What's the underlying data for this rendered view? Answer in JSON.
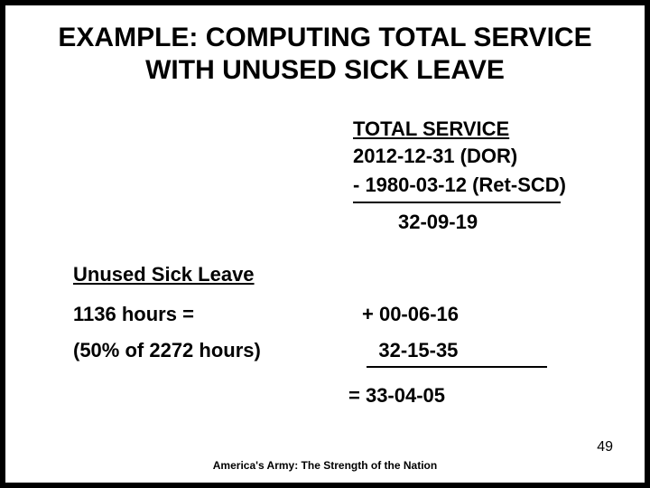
{
  "title": "EXAMPLE: COMPUTING TOTAL SERVICE WITH UNUSED SICK LEAVE",
  "total_service": {
    "label": "TOTAL SERVICE",
    "dor": " 2012-12-31 (DOR)",
    "retscd": "- 1980-03-12 (Ret-SCD)",
    "result": "32-09-19"
  },
  "unused": {
    "label": "Unused Sick Leave",
    "hours_line": "1136 hours =",
    "fifty_line": "(50% of 2272 hours)",
    "plus": "+ 00-06-16",
    "sum": "32-15-35",
    "final": "= 33-04-05"
  },
  "footer": "America's Army: The Strength of the Nation",
  "page": "49",
  "colors": {
    "border": "#000000",
    "bg": "#ffffff",
    "text": "#000000"
  },
  "typography": {
    "title_fontsize": 30,
    "body_fontsize": 22,
    "footer_fontsize": 12,
    "page_fontsize": 16,
    "font_family": "Arial"
  }
}
